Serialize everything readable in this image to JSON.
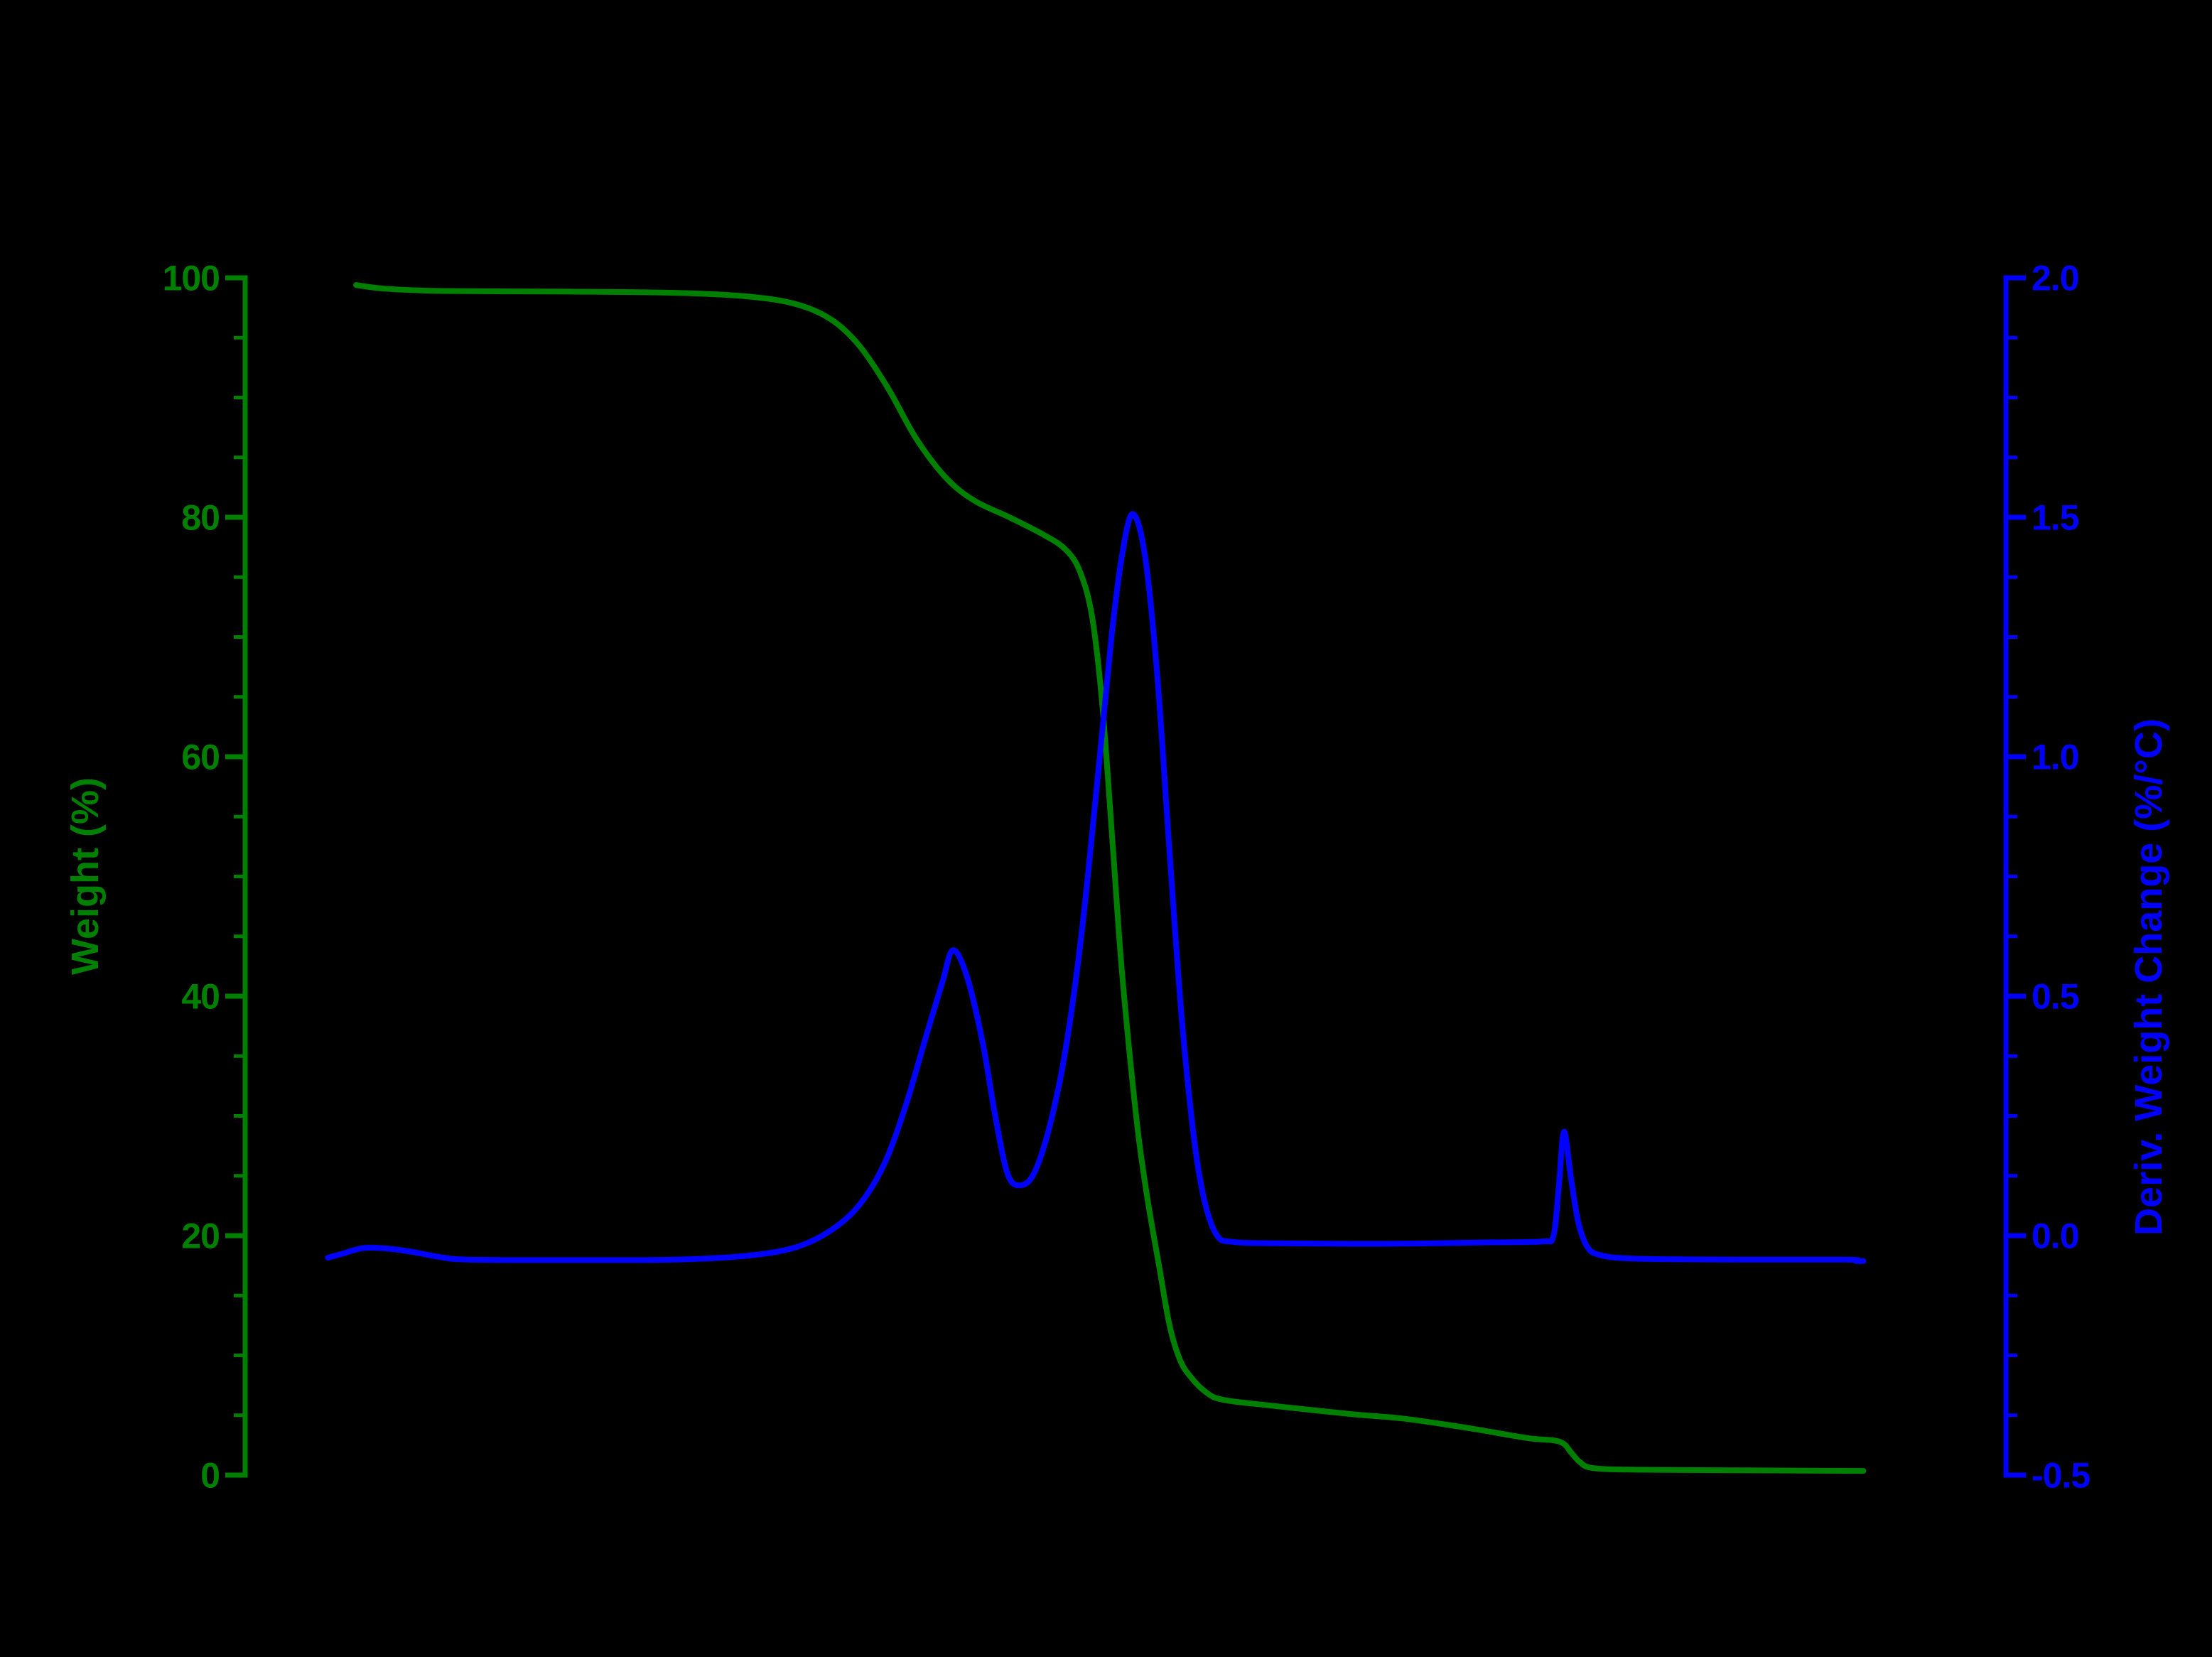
{
  "figure": {
    "background": "#000000",
    "title": ""
  },
  "left_axis": {
    "label": "Weight (%)",
    "color": "#008000",
    "range": [
      0,
      100
    ],
    "major_ticks": [
      0,
      20,
      40,
      60,
      80,
      100
    ],
    "tick_labels": [
      "0",
      "20",
      "40",
      "60",
      "80",
      "100"
    ],
    "minor_step": 5,
    "decimals": 0
  },
  "right_axis": {
    "label": "Deriv. Weight Change (%/°C)",
    "color": "#0000ff",
    "range": [
      -0.5,
      2.0
    ],
    "major_ticks": [
      -0.5,
      0.0,
      0.5,
      1.0,
      1.5,
      2.0
    ],
    "tick_labels": [
      "-0.5",
      "0.0",
      "0.5",
      "1.0",
      "1.5",
      "2.0"
    ],
    "minor_step": 0.125,
    "decimals": 1
  },
  "chart_data": {
    "type": "line",
    "title": "",
    "xlabel": "",
    "x_tick_labels": "not visible (black on black)",
    "legend": "none",
    "grid": "off",
    "x_units": "fraction of plot width (temperature axis labels not visible)",
    "left_ylim": [
      0,
      100
    ],
    "right_ylim": [
      -0.5,
      2.0
    ],
    "series": [
      {
        "name": "Weight",
        "axis": "left",
        "units": "%",
        "color": "#008000",
        "points": [
          [
            0.063,
            99.4
          ],
          [
            0.079,
            99.1
          ],
          [
            0.111,
            98.9
          ],
          [
            0.184,
            98.85
          ],
          [
            0.244,
            98.75
          ],
          [
            0.285,
            98.45
          ],
          [
            0.313,
            97.8
          ],
          [
            0.333,
            96.5
          ],
          [
            0.349,
            94.3
          ],
          [
            0.365,
            90.8
          ],
          [
            0.381,
            86.6
          ],
          [
            0.398,
            83.3
          ],
          [
            0.414,
            81.4
          ],
          [
            0.434,
            80.0
          ],
          [
            0.454,
            78.5
          ],
          [
            0.466,
            77.3
          ],
          [
            0.474,
            75.5
          ],
          [
            0.481,
            71.7
          ],
          [
            0.487,
            64.0
          ],
          [
            0.493,
            52.0
          ],
          [
            0.498,
            42.0
          ],
          [
            0.506,
            30.0
          ],
          [
            0.512,
            23.5
          ],
          [
            0.519,
            17.5
          ],
          [
            0.525,
            12.5
          ],
          [
            0.531,
            9.6
          ],
          [
            0.537,
            8.2
          ],
          [
            0.545,
            7.0
          ],
          [
            0.555,
            6.3
          ],
          [
            0.583,
            5.8
          ],
          [
            0.628,
            5.1
          ],
          [
            0.659,
            4.7
          ],
          [
            0.696,
            3.9
          ],
          [
            0.728,
            3.1
          ],
          [
            0.743,
            2.9
          ],
          [
            0.749,
            2.6
          ],
          [
            0.753,
            1.9
          ],
          [
            0.758,
            1.1
          ],
          [
            0.765,
            0.6
          ],
          [
            0.789,
            0.45
          ],
          [
            0.85,
            0.4
          ],
          [
            0.919,
            0.35
          ]
        ]
      },
      {
        "name": "Deriv. Weight Change",
        "axis": "right",
        "units": "%/°C",
        "color": "#0000ff",
        "points": [
          [
            0.047,
            -0.046
          ],
          [
            0.055,
            -0.038
          ],
          [
            0.067,
            -0.026
          ],
          [
            0.081,
            -0.027
          ],
          [
            0.095,
            -0.034
          ],
          [
            0.111,
            -0.045
          ],
          [
            0.127,
            -0.05
          ],
          [
            0.184,
            -0.051
          ],
          [
            0.244,
            -0.05
          ],
          [
            0.285,
            -0.042
          ],
          [
            0.313,
            -0.024
          ],
          [
            0.333,
            0.012
          ],
          [
            0.349,
            0.065
          ],
          [
            0.363,
            0.15
          ],
          [
            0.375,
            0.27
          ],
          [
            0.387,
            0.42
          ],
          [
            0.396,
            0.53
          ],
          [
            0.402,
            0.596
          ],
          [
            0.41,
            0.54
          ],
          [
            0.419,
            0.4
          ],
          [
            0.426,
            0.25
          ],
          [
            0.433,
            0.129
          ],
          [
            0.44,
            0.105
          ],
          [
            0.448,
            0.13
          ],
          [
            0.457,
            0.23
          ],
          [
            0.466,
            0.39
          ],
          [
            0.475,
            0.63
          ],
          [
            0.484,
            0.95
          ],
          [
            0.492,
            1.25
          ],
          [
            0.498,
            1.42
          ],
          [
            0.504,
            1.507
          ],
          [
            0.511,
            1.42
          ],
          [
            0.518,
            1.17
          ],
          [
            0.525,
            0.8
          ],
          [
            0.532,
            0.45
          ],
          [
            0.539,
            0.2
          ],
          [
            0.545,
            0.07
          ],
          [
            0.552,
            0.0
          ],
          [
            0.561,
            -0.013
          ],
          [
            0.587,
            -0.016
          ],
          [
            0.648,
            -0.017
          ],
          [
            0.708,
            -0.014
          ],
          [
            0.737,
            -0.012
          ],
          [
            0.743,
            0.0
          ],
          [
            0.746,
            0.1
          ],
          [
            0.749,
            0.217
          ],
          [
            0.753,
            0.12
          ],
          [
            0.757,
            0.03
          ],
          [
            0.762,
            -0.022
          ],
          [
            0.769,
            -0.04
          ],
          [
            0.789,
            -0.048
          ],
          [
            0.85,
            -0.05
          ],
          [
            0.91,
            -0.05
          ],
          [
            0.915,
            -0.053
          ],
          [
            0.919,
            -0.053
          ]
        ]
      }
    ]
  }
}
